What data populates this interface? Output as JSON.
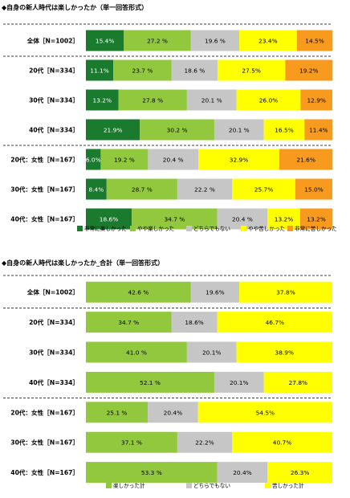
{
  "chart_data": [
    {
      "type": "bar",
      "stacked": true,
      "orientation": "horizontal",
      "title": "◆自身の新人時代は楽しかったか（単一回答形式）",
      "xlim": [
        0,
        100
      ],
      "categories": [
        "全体［N=1002］",
        "20代［N=334］",
        "30代［N=334］",
        "40代［N=334］",
        "20代：女性［N=167］",
        "30代：女性［N=167］",
        "40代：女性［N=167］"
      ],
      "series": [
        {
          "name": "非常に楽しかった",
          "color": "#1a7a2e",
          "text_color": "#ffffff",
          "values": [
            15.4,
            11.1,
            13.2,
            21.9,
            6.0,
            8.4,
            18.6
          ],
          "labels": [
            "15.4%",
            "11.1%",
            "13.2%",
            "21.9%",
            "6.0%",
            "8.4%",
            "18.6%"
          ]
        },
        {
          "name": "やや楽しかった",
          "color": "#92c83e",
          "text_color": "#000000",
          "values": [
            27.2,
            23.7,
            27.8,
            30.2,
            19.2,
            28.7,
            34.7
          ],
          "labels": [
            "27.2 %",
            "23.7 %",
            "27.8 %",
            "30.2 %",
            "19.2 %",
            "28.7 %",
            "34.7 %"
          ]
        },
        {
          "name": "どちらでもない",
          "color": "#c6c6c6",
          "text_color": "#000000",
          "values": [
            19.6,
            18.6,
            20.1,
            20.1,
            20.4,
            22.2,
            20.4
          ],
          "labels": [
            "19.6 %",
            "18.6 %",
            "20.1 %",
            "20.1 %",
            "20.4 %",
            "22.2 %",
            "20.4 %"
          ]
        },
        {
          "name": "やや苦しかった",
          "color": "#ffff00",
          "text_color": "#000000",
          "values": [
            23.4,
            27.5,
            26.0,
            16.5,
            32.9,
            25.7,
            13.2
          ],
          "labels": [
            "23.4%",
            "27.5%",
            "26.0%",
            "16.5%",
            "32.9%",
            "25.7%",
            "13.2%"
          ]
        },
        {
          "name": "非常に苦しかった",
          "color": "#f79a1e",
          "text_color": "#000000",
          "values": [
            14.5,
            19.2,
            12.9,
            11.4,
            21.6,
            15.0,
            13.2
          ],
          "labels": [
            "14.5%",
            "19.2%",
            "12.9%",
            "11.4%",
            "21.6%",
            "15.0%",
            "13.2%"
          ]
        }
      ],
      "legend_position": "bottom"
    },
    {
      "type": "bar",
      "stacked": true,
      "orientation": "horizontal",
      "title": "◆自身の新人時代は楽しかったか_合計（単一回答形式）",
      "xlim": [
        0,
        100
      ],
      "categories": [
        "全体［N=1002］",
        "20代［N=334］",
        "30代［N=334］",
        "40代［N=334］",
        "20代：女性［N=167］",
        "30代：女性［N=167］",
        "40代：女性［N=167］"
      ],
      "series": [
        {
          "name": "楽しかった計",
          "color": "#92c83e",
          "text_color": "#000000",
          "values": [
            42.6,
            34.7,
            41.0,
            52.1,
            25.1,
            37.1,
            53.3
          ],
          "labels": [
            "42.6 %",
            "34.7 %",
            "41.0 %",
            "52.1 %",
            "25.1 %",
            "37.1 %",
            "53.3 %"
          ]
        },
        {
          "name": "どちらでもない",
          "color": "#c6c6c6",
          "text_color": "#000000",
          "values": [
            19.6,
            18.6,
            20.1,
            20.1,
            20.4,
            22.2,
            20.4
          ],
          "labels": [
            "19.6%",
            "18.6%",
            "20.1%",
            "20.1%",
            "20.4%",
            "22.2%",
            "20.4%"
          ]
        },
        {
          "name": "苦しかった計",
          "color": "#ffff00",
          "text_color": "#000000",
          "values": [
            37.8,
            46.7,
            38.9,
            27.8,
            54.5,
            40.7,
            26.3
          ],
          "labels": [
            "37.8%",
            "46.7%",
            "38.9%",
            "27.8%",
            "54.5%",
            "40.7%",
            "26.3%"
          ]
        }
      ],
      "legend_position": "bottom"
    }
  ]
}
